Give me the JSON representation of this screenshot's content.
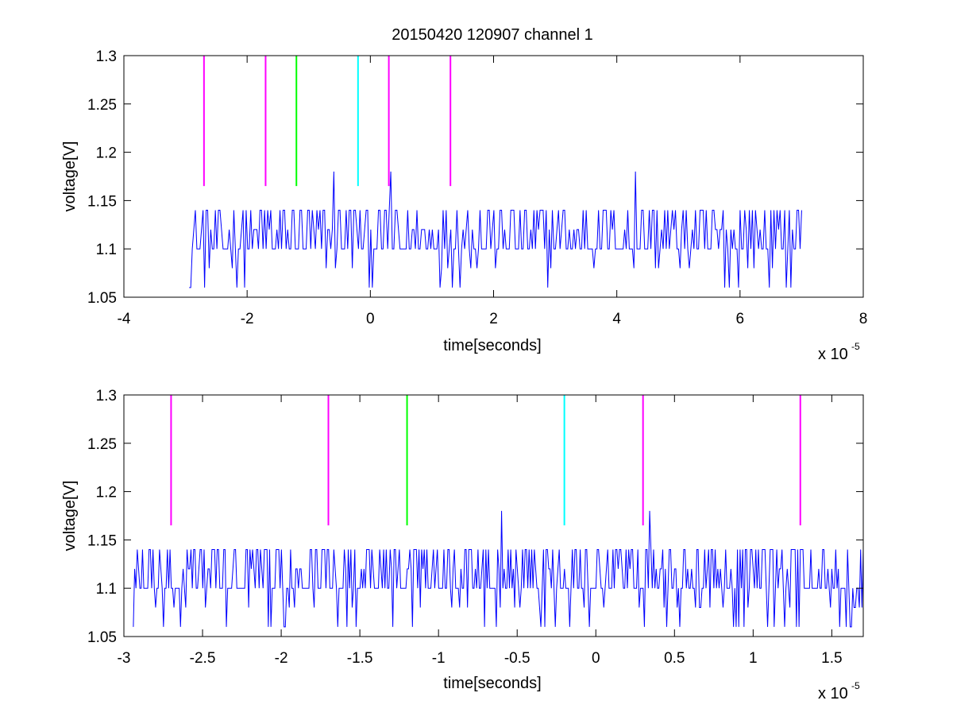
{
  "chart_data": [
    {
      "type": "line",
      "title": "20150420 120907 channel 1",
      "xlabel": "time[seconds]",
      "ylabel": "voltage[V]",
      "x_exponent_label": "x 10",
      "x_exponent_power": "-5",
      "xlim": [
        -4,
        8
      ],
      "ylim": [
        1.05,
        1.3
      ],
      "xticks": [
        -4,
        -2,
        0,
        2,
        4,
        6,
        8
      ],
      "xtick_labels": [
        "-4",
        "-2",
        "0",
        "2",
        "4",
        "6",
        "8"
      ],
      "yticks": [
        1.05,
        1.1,
        1.15,
        1.2,
        1.25,
        1.3
      ],
      "ytick_labels": [
        "1.05",
        "1.1",
        "1.15",
        "1.2",
        "1.25",
        "1.3"
      ],
      "grid": false,
      "signal": {
        "color": "#0000ff",
        "x_start": -2.94,
        "x_end": 7.0,
        "levels": [
          1.06,
          1.08,
          1.1,
          1.12,
          1.14
        ],
        "spikes": [
          {
            "x": -0.6,
            "y": 1.18
          },
          {
            "x": 0.34,
            "y": 1.18
          },
          {
            "x": 4.3,
            "y": 1.18
          }
        ]
      },
      "markers": [
        {
          "x": -2.7,
          "y0": 1.165,
          "y1": 1.3,
          "color": "#ff00ff"
        },
        {
          "x": -1.7,
          "y0": 1.165,
          "y1": 1.3,
          "color": "#ff00ff"
        },
        {
          "x": -1.2,
          "y0": 1.165,
          "y1": 1.3,
          "color": "#00ff00"
        },
        {
          "x": -0.2,
          "y0": 1.165,
          "y1": 1.3,
          "color": "#00ffff"
        },
        {
          "x": 0.3,
          "y0": 1.165,
          "y1": 1.3,
          "color": "#ff00ff"
        },
        {
          "x": 1.3,
          "y0": 1.165,
          "y1": 1.3,
          "color": "#ff00ff"
        }
      ]
    },
    {
      "type": "line",
      "title": "",
      "xlabel": "time[seconds]",
      "ylabel": "voltage[V]",
      "x_exponent_label": "x 10",
      "x_exponent_power": "-5",
      "xlim": [
        -3.0,
        1.7
      ],
      "ylim": [
        1.05,
        1.3
      ],
      "xticks": [
        -3,
        -2.5,
        -2,
        -1.5,
        -1,
        -0.5,
        0,
        0.5,
        1,
        1.5
      ],
      "xtick_labels": [
        "-3",
        "-2.5",
        "-2",
        "-1.5",
        "-1",
        "-0.5",
        "0",
        "0.5",
        "1",
        "1.5"
      ],
      "yticks": [
        1.05,
        1.1,
        1.15,
        1.2,
        1.25,
        1.3
      ],
      "ytick_labels": [
        "1.05",
        "1.1",
        "1.15",
        "1.2",
        "1.25",
        "1.3"
      ],
      "grid": false,
      "signal": {
        "color": "#0000ff",
        "x_start": -2.94,
        "x_end": 1.7,
        "levels": [
          1.06,
          1.08,
          1.1,
          1.12,
          1.14
        ],
        "spikes": [
          {
            "x": -0.6,
            "y": 1.18
          },
          {
            "x": 0.34,
            "y": 1.18
          }
        ]
      },
      "markers": [
        {
          "x": -2.7,
          "y0": 1.165,
          "y1": 1.3,
          "color": "#ff00ff"
        },
        {
          "x": -1.7,
          "y0": 1.165,
          "y1": 1.3,
          "color": "#ff00ff"
        },
        {
          "x": -1.2,
          "y0": 1.165,
          "y1": 1.3,
          "color": "#00ff00"
        },
        {
          "x": -0.2,
          "y0": 1.165,
          "y1": 1.3,
          "color": "#00ffff"
        },
        {
          "x": 0.3,
          "y0": 1.165,
          "y1": 1.3,
          "color": "#ff00ff"
        },
        {
          "x": 1.3,
          "y0": 1.165,
          "y1": 1.3,
          "color": "#ff00ff"
        }
      ]
    }
  ]
}
